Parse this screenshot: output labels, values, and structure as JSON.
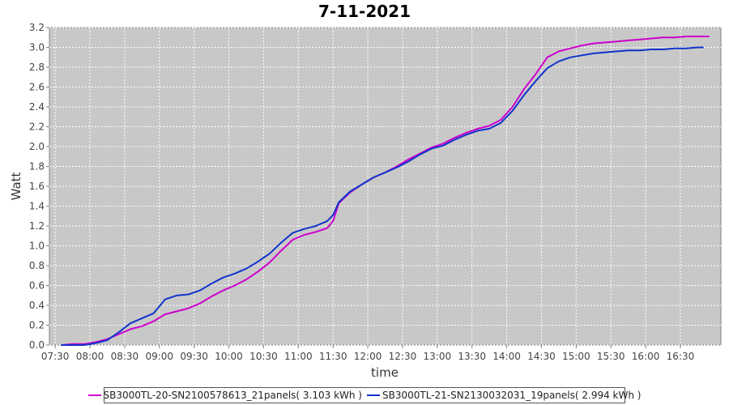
{
  "chart_data": {
    "type": "line",
    "title": "7-11-2021",
    "xlabel": "time",
    "ylabel": "Watt",
    "ylim": [
      0.0,
      3.2
    ],
    "xlim": [
      "07:25",
      "17:05"
    ],
    "x_ticks": [
      "07:30",
      "08:00",
      "08:30",
      "09:00",
      "09:30",
      "10:00",
      "10:30",
      "11:00",
      "11:30",
      "12:00",
      "12:30",
      "13:00",
      "13:30",
      "14:00",
      "14:30",
      "15:00",
      "15:30",
      "16:00",
      "16:30"
    ],
    "y_ticks": [
      "0.0",
      "0.2",
      "0.4",
      "0.6",
      "0.8",
      "1.0",
      "1.2",
      "1.4",
      "1.6",
      "1.8",
      "2.0",
      "2.2",
      "2.4",
      "2.6",
      "2.8",
      "3.0",
      "3.2"
    ],
    "grid": true,
    "legend_position": "bottom",
    "series": [
      {
        "name": "SB3000TL-20-SN2100578613_21panels( 3.103 kWh )",
        "color": "#cc00cc",
        "x": [
          "07:35",
          "07:45",
          "07:55",
          "08:05",
          "08:15",
          "08:25",
          "08:35",
          "08:45",
          "08:55",
          "09:05",
          "09:15",
          "09:25",
          "09:35",
          "09:45",
          "09:55",
          "10:05",
          "10:15",
          "10:25",
          "10:35",
          "10:45",
          "10:55",
          "11:05",
          "11:15",
          "11:25",
          "11:30",
          "11:35",
          "11:45",
          "11:55",
          "12:05",
          "12:15",
          "12:25",
          "12:35",
          "12:45",
          "12:55",
          "13:05",
          "13:15",
          "13:25",
          "13:35",
          "13:45",
          "13:55",
          "14:05",
          "14:15",
          "14:25",
          "14:35",
          "14:45",
          "14:55",
          "15:05",
          "15:15",
          "15:25",
          "15:35",
          "15:45",
          "15:55",
          "16:05",
          "16:15",
          "16:25",
          "16:35",
          "16:45",
          "16:55"
        ],
        "y": [
          0.0,
          0.01,
          0.01,
          0.03,
          0.06,
          0.11,
          0.16,
          0.19,
          0.24,
          0.31,
          0.34,
          0.37,
          0.42,
          0.49,
          0.55,
          0.6,
          0.66,
          0.74,
          0.83,
          0.95,
          1.06,
          1.11,
          1.14,
          1.18,
          1.25,
          1.43,
          1.54,
          1.62,
          1.69,
          1.74,
          1.8,
          1.87,
          1.93,
          1.99,
          2.03,
          2.09,
          2.14,
          2.18,
          2.21,
          2.27,
          2.4,
          2.58,
          2.73,
          2.9,
          2.96,
          2.99,
          3.02,
          3.04,
          3.05,
          3.06,
          3.07,
          3.08,
          3.09,
          3.1,
          3.1,
          3.11,
          3.11,
          3.11
        ]
      },
      {
        "name": "SB3000TL-21-SN2130032031_19panels( 2.994 kWh )",
        "color": "#1133cc",
        "x": [
          "07:35",
          "07:45",
          "07:55",
          "08:05",
          "08:15",
          "08:25",
          "08:35",
          "08:45",
          "08:55",
          "09:05",
          "09:15",
          "09:25",
          "09:35",
          "09:45",
          "09:55",
          "10:05",
          "10:15",
          "10:25",
          "10:35",
          "10:45",
          "10:55",
          "11:05",
          "11:15",
          "11:25",
          "11:30",
          "11:35",
          "11:45",
          "11:55",
          "12:05",
          "12:15",
          "12:25",
          "12:35",
          "12:45",
          "12:55",
          "13:05",
          "13:15",
          "13:25",
          "13:35",
          "13:45",
          "13:55",
          "14:05",
          "14:15",
          "14:25",
          "14:35",
          "14:45",
          "14:55",
          "15:05",
          "15:15",
          "15:25",
          "15:35",
          "15:45",
          "15:55",
          "16:05",
          "16:15",
          "16:25",
          "16:35",
          "16:45",
          "16:50"
        ],
        "y": [
          0.0,
          0.0,
          0.0,
          0.02,
          0.05,
          0.13,
          0.22,
          0.27,
          0.32,
          0.46,
          0.5,
          0.51,
          0.55,
          0.62,
          0.68,
          0.72,
          0.77,
          0.84,
          0.92,
          1.03,
          1.13,
          1.17,
          1.2,
          1.25,
          1.31,
          1.44,
          1.55,
          1.62,
          1.69,
          1.74,
          1.79,
          1.85,
          1.92,
          1.98,
          2.01,
          2.07,
          2.12,
          2.16,
          2.18,
          2.24,
          2.36,
          2.52,
          2.66,
          2.79,
          2.86,
          2.9,
          2.92,
          2.94,
          2.95,
          2.96,
          2.97,
          2.97,
          2.98,
          2.98,
          2.99,
          2.99,
          3.0,
          3.0
        ]
      }
    ]
  }
}
